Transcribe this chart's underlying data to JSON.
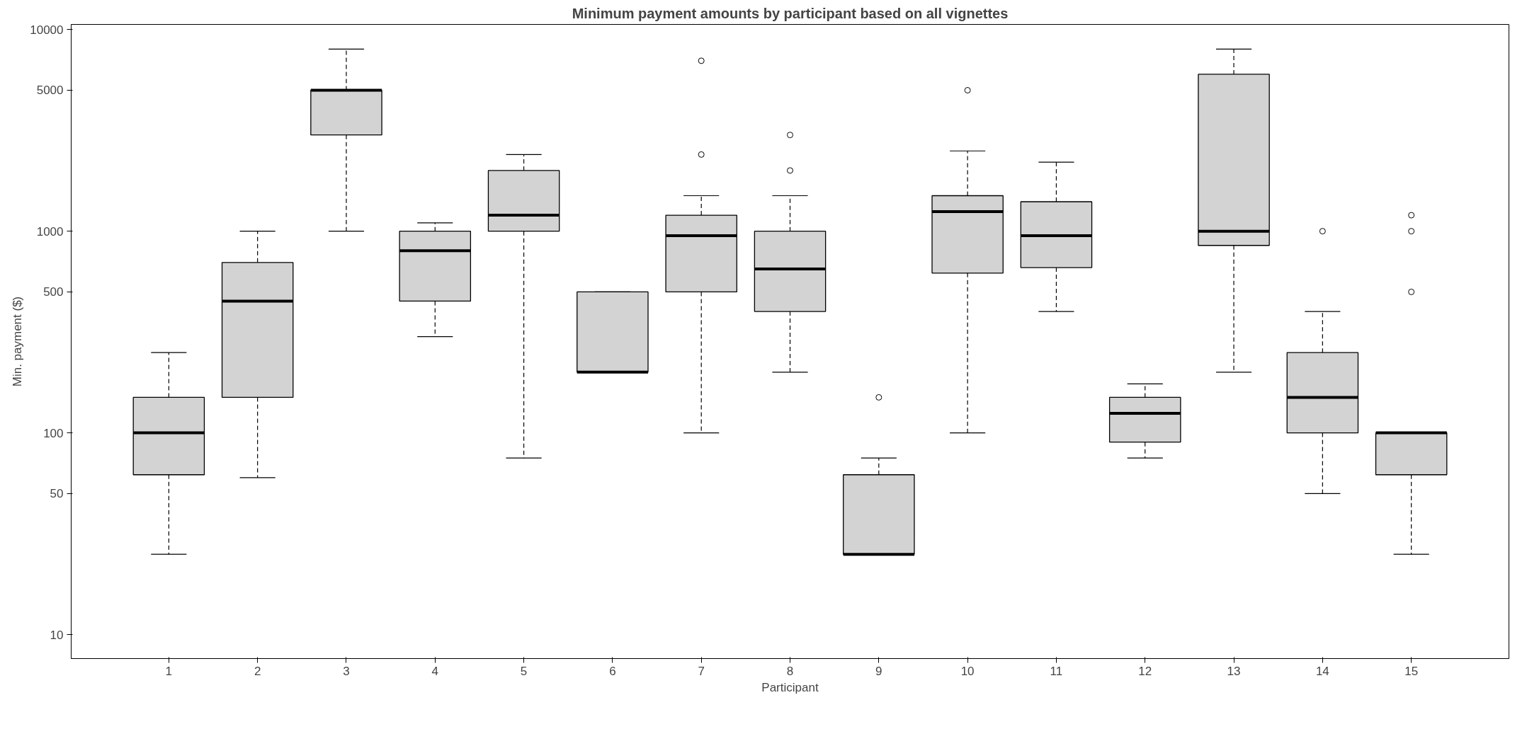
{
  "chart_data": {
    "type": "box",
    "title": "Minimum payment amounts by participant based on all vignettes",
    "xlabel": "Participant",
    "ylabel": "Min. payment ($)",
    "categories": [
      "1",
      "2",
      "3",
      "4",
      "5",
      "6",
      "7",
      "8",
      "9",
      "10",
      "11",
      "12",
      "13",
      "14",
      "15"
    ],
    "color": "#d3d3d3",
    "log": "y",
    "grid": false,
    "marker": "circle",
    "ylim": [
      7.6,
      10600
    ],
    "yticks": [
      10,
      50,
      100,
      500,
      1000,
      5000,
      10000
    ],
    "boxes": [
      {
        "low": 25,
        "q1": 62,
        "median": 100,
        "q3": 150,
        "high": 250
      },
      {
        "low": 60,
        "q1": 150,
        "median": 450,
        "q3": 700,
        "high": 1000
      },
      {
        "low": 1000,
        "q1": 3000,
        "median": 5000,
        "q3": 5000,
        "high": 8000
      },
      {
        "low": 300,
        "q1": 450,
        "median": 800,
        "q3": 1000,
        "high": 1100
      },
      {
        "low": 75,
        "q1": 1000,
        "median": 1200,
        "q3": 2000,
        "high": 2400
      },
      {
        "low": 200,
        "q1": 200,
        "median": 200,
        "q3": 500,
        "high": 500
      },
      {
        "low": 100,
        "q1": 500,
        "median": 950,
        "q3": 1200,
        "high": 1500,
        "outliers": [
          2400,
          7000
        ]
      },
      {
        "low": 200,
        "q1": 400,
        "median": 650,
        "q3": 1000,
        "high": 1500,
        "outliers": [
          2000,
          3000
        ]
      },
      {
        "low": 25,
        "q1": 25,
        "median": 25,
        "q3": 62,
        "high": 75,
        "outliers": [
          150
        ]
      },
      {
        "low": 100,
        "q1": 620,
        "median": 1250,
        "q3": 1500,
        "high": 2500,
        "outliers": [
          5000
        ]
      },
      {
        "low": 400,
        "q1": 660,
        "median": 950,
        "q3": 1400,
        "high": 2200
      },
      {
        "low": 75,
        "q1": 90,
        "median": 125,
        "q3": 150,
        "high": 175
      },
      {
        "low": 200,
        "q1": 850,
        "median": 1000,
        "q3": 6000,
        "high": 8000
      },
      {
        "low": 50,
        "q1": 100,
        "median": 150,
        "q3": 250,
        "high": 400,
        "outliers": [
          1000
        ]
      },
      {
        "low": 25,
        "q1": 62,
        "median": 100,
        "q3": 100,
        "high": 100,
        "outliers": [
          500,
          1000,
          1200
        ]
      }
    ]
  }
}
